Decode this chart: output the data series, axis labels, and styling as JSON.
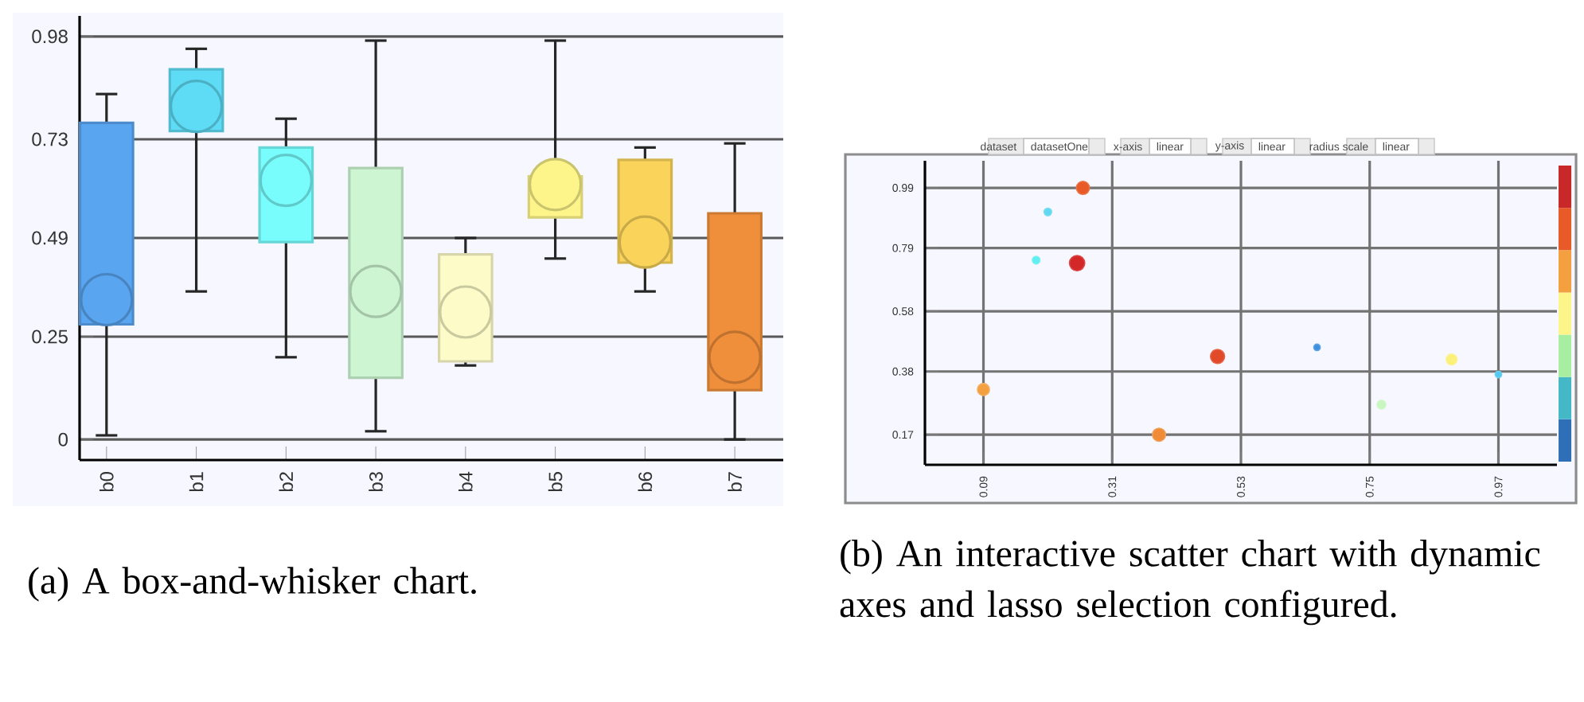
{
  "chart_data": [
    {
      "type": "box",
      "categories": [
        "b0",
        "b1",
        "b2",
        "b3",
        "b4",
        "b5",
        "b6",
        "b7"
      ],
      "boxes": [
        {
          "low": 0.01,
          "q1": 0.28,
          "median": 0.34,
          "q3": 0.77,
          "high": 0.84
        },
        {
          "low": 0.36,
          "q1": 0.75,
          "median": 0.81,
          "q3": 0.9,
          "high": 0.95
        },
        {
          "low": 0.2,
          "q1": 0.48,
          "median": 0.63,
          "q3": 0.71,
          "high": 0.78
        },
        {
          "low": 0.02,
          "q1": 0.15,
          "median": 0.36,
          "q3": 0.66,
          "high": 0.97
        },
        {
          "low": 0.18,
          "q1": 0.19,
          "median": 0.31,
          "q3": 0.45,
          "high": 0.49
        },
        {
          "low": 0.44,
          "q1": 0.54,
          "median": 0.62,
          "q3": 0.64,
          "high": 0.97
        },
        {
          "low": 0.36,
          "q1": 0.43,
          "median": 0.48,
          "q3": 0.68,
          "high": 0.71
        },
        {
          "low": 0,
          "q1": 0.12,
          "median": 0.2,
          "q3": 0.55,
          "high": 0.72
        }
      ],
      "colors": [
        "#5aa5f0",
        "#5fdcf5",
        "#78fcfc",
        "#cdf5d2",
        "#fdfcc8",
        "#fdf58a",
        "#fad45a",
        "#ef8f3c"
      ],
      "ylim": [
        -0.05,
        1.03
      ],
      "yticks": [
        0,
        0.25,
        0.49,
        0.73,
        0.98
      ],
      "grid": "y",
      "annotations": [
        "(a) A box-and-whisker chart."
      ]
    },
    {
      "type": "bubble",
      "grid": true,
      "x": [
        0.26,
        0.2,
        0.18,
        0.25,
        0.09,
        0.39,
        0.49,
        0.66,
        0.77,
        0.89,
        0.97
      ],
      "values": [
        0.99,
        0.91,
        0.75,
        0.74,
        0.32,
        0.17,
        0.43,
        0.46,
        0.27,
        0.42,
        0.37
      ],
      "sizes": [
        0.73,
        0.25,
        0.25,
        1,
        0.62,
        0.73,
        0.86,
        0.18,
        0.33,
        0.51,
        0.18
      ],
      "colors": [
        "#e85a28",
        "#5fd8f0",
        "#60eef0",
        "#d42828",
        "#f5a040",
        "#f08c38",
        "#e04a28",
        "#3f8fe0",
        "#c8f5c0",
        "#fbf07a",
        "#50c8f0"
      ],
      "xlim": [
        -0.01,
        1.07
      ],
      "ylim": [
        0.07,
        1.08
      ],
      "xticks": [
        0.09,
        0.31,
        0.53,
        0.75,
        0.97
      ],
      "yticks": [
        0.17,
        0.38,
        0.58,
        0.79,
        0.99
      ],
      "annotations": [
        "dataset",
        "datasetOne",
        "x-axis",
        "linear",
        "y-axis",
        "linear",
        "radius scale",
        "linear",
        "(b) An interactive scatter chart with dynamic axes and lasso selection configured."
      ]
    }
  ]
}
